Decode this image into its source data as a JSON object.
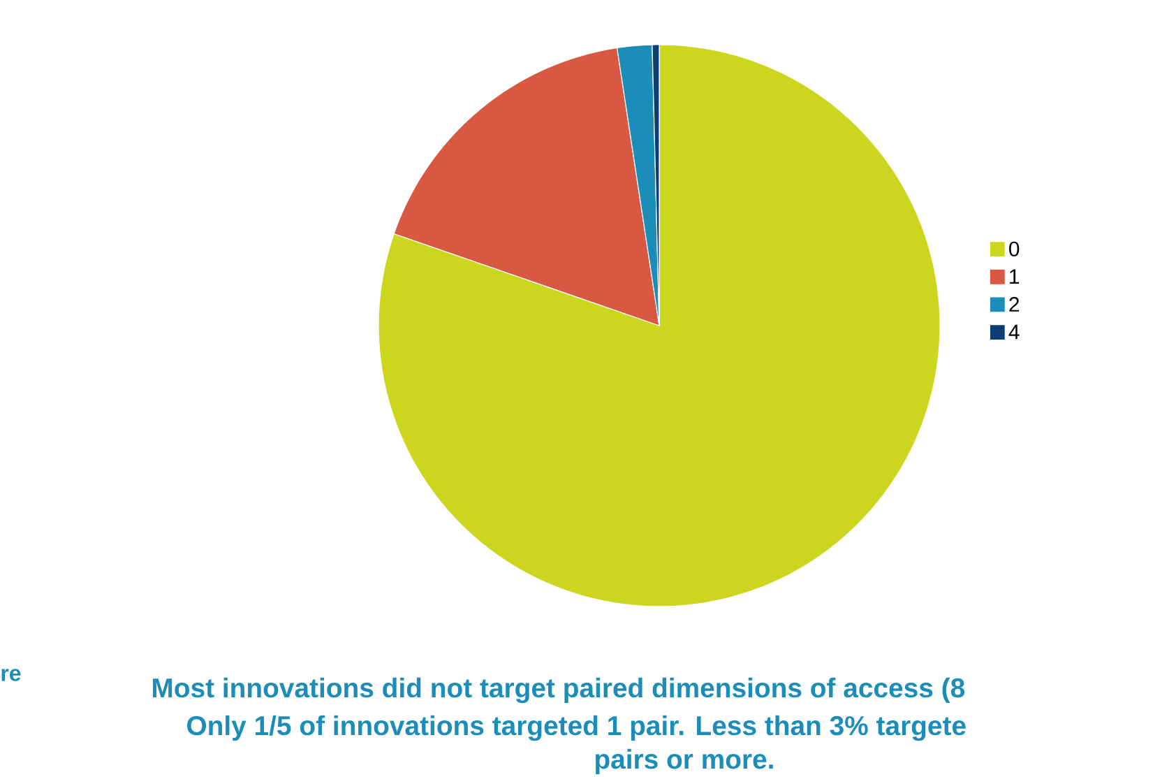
{
  "chart_data": {
    "type": "pie",
    "categories": [
      "0",
      "1",
      "2",
      "4"
    ],
    "values": [
      80.3,
      17.3,
      2.0,
      0.4
    ],
    "colors": [
      "#cdd61f",
      "#d95841",
      "#1b8db8",
      "#0b3f73"
    ],
    "legend": "right",
    "annotations": [
      "re",
      "Most innovations did not target paired dimensions of access (8",
      "Only 1/5 of innovations targeted 1 pair. Less than 3% targete",
      "pairs or more."
    ]
  }
}
